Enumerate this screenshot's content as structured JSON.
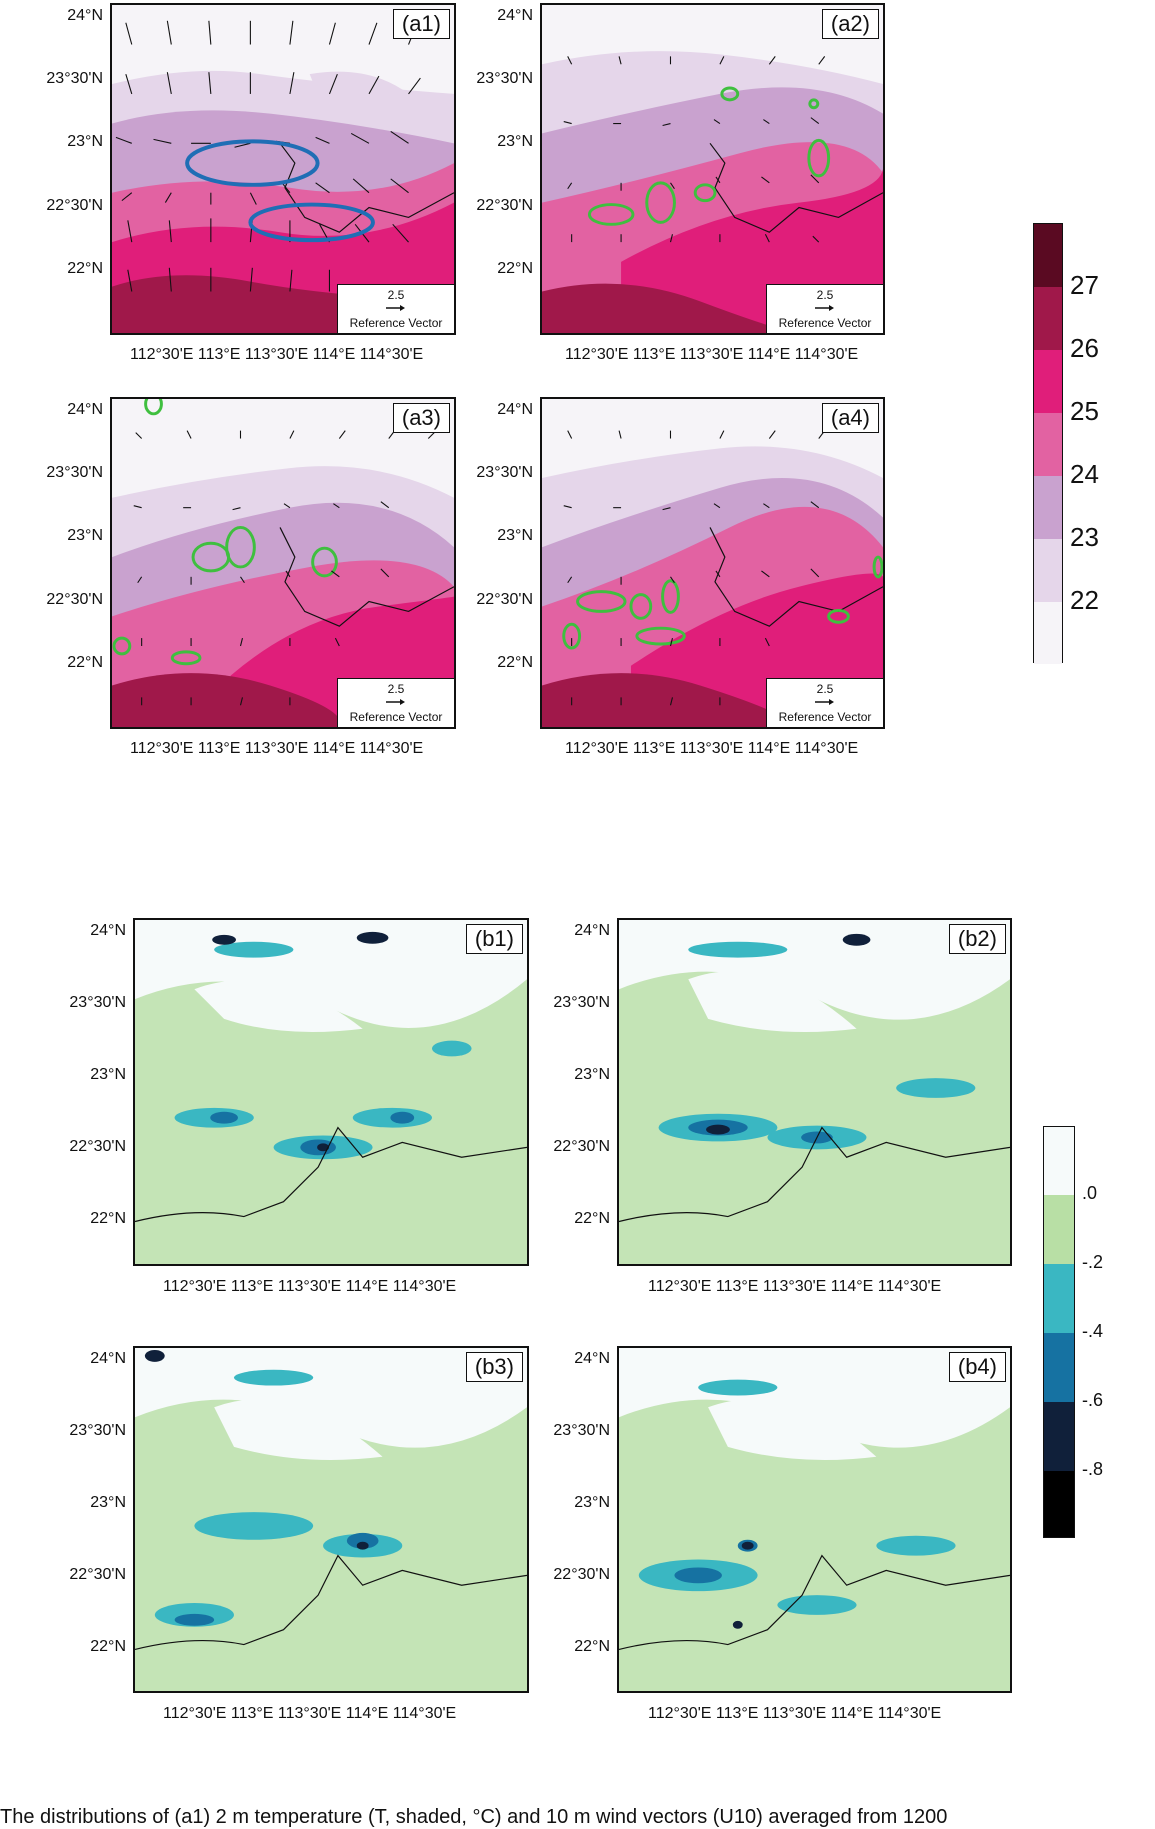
{
  "panels_a": [
    {
      "label": "(a1)",
      "has_ellipses": true
    },
    {
      "label": "(a2)",
      "has_ellipses": false
    },
    {
      "label": "(a3)",
      "has_ellipses": false
    },
    {
      "label": "(a4)",
      "has_ellipses": false
    }
  ],
  "panels_b": [
    {
      "label": "(b1)"
    },
    {
      "label": "(b2)"
    },
    {
      "label": "(b3)"
    },
    {
      "label": "(b4)"
    }
  ],
  "y_ticks": [
    "24°N",
    "23°30'N",
    "23°N",
    "22°30'N",
    "22°N"
  ],
  "x_axis_label": "112°30'E 113°E 113°30'E 114°E 114°30'E",
  "reference_vector": {
    "value": "2.5",
    "label": "Reference Vector"
  },
  "colorbar_temperature": {
    "labels": [
      "27",
      "26",
      "25",
      "24",
      "23",
      "22"
    ],
    "colors": [
      "#5a0a22",
      "#a0184a",
      "#e01e7a",
      "#e262a2",
      "#c9a2cf",
      "#e5d6ea",
      "#f6f4f8"
    ]
  },
  "colorbar_divergence": {
    "labels": [
      ".0",
      "-.2",
      "-.4",
      "-.6",
      "-.8"
    ],
    "colors": [
      "#f6fafa",
      "#b8dfa5",
      "#3ab7c2",
      "#1672a2",
      "#10203a",
      "#000000"
    ]
  },
  "caption": "The distributions of (a1) 2 m temperature (T, shaded, °C) and 10 m wind vectors (U10) averaged from 1200"
}
